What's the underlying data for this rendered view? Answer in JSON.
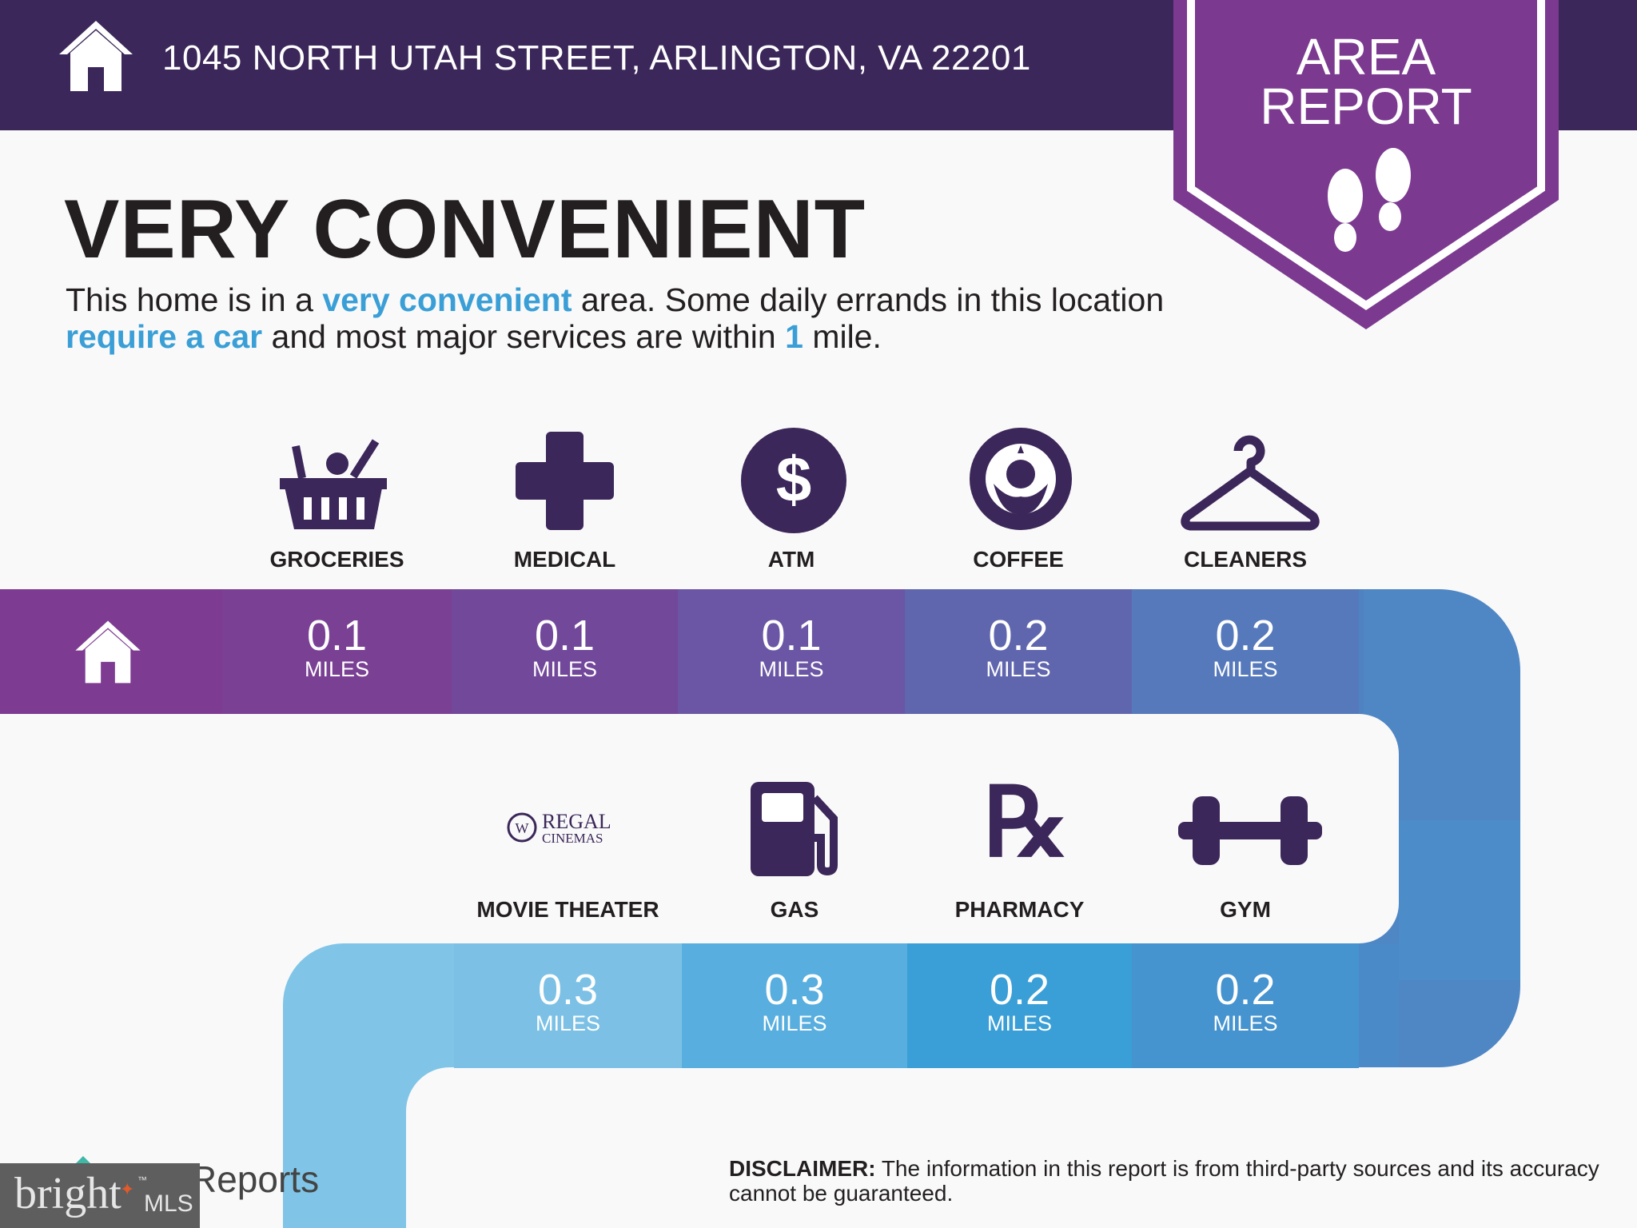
{
  "header": {
    "address": "1045 NORTH UTAH STREET, ARLINGTON, VA 22201",
    "icon": "house-icon"
  },
  "badge": {
    "line1": "AREA",
    "line2": "REPORT",
    "icon": "footprints-icon"
  },
  "title": "VERY CONVENIENT",
  "description": {
    "p1": "This home is in a ",
    "h1": "very convenient",
    "p2": " area. Some daily errands in this location ",
    "h2": "require a car",
    "p3": " and most major services are within ",
    "h3": "1",
    "p4": " mile."
  },
  "row1": [
    {
      "label": "GROCERIES",
      "value": "0.1",
      "unit": "MILES",
      "icon": "grocery-basket-icon",
      "color": "#7a4094"
    },
    {
      "label": "MEDICAL",
      "value": "0.1",
      "unit": "MILES",
      "icon": "medical-cross-icon",
      "color": "#72489b"
    },
    {
      "label": "ATM",
      "value": "0.1",
      "unit": "MILES",
      "icon": "dollar-icon",
      "color": "#6a56a4"
    },
    {
      "label": "COFFEE",
      "value": "0.2",
      "unit": "MILES",
      "icon": "starbucks-logo-icon",
      "color": "#6066ae"
    },
    {
      "label": "CLEANERS",
      "value": "0.2",
      "unit": "MILES",
      "icon": "hanger-icon",
      "color": "#5579bb"
    }
  ],
  "row2": [
    {
      "label": "MOVIE THEATER",
      "value": "0.3",
      "unit": "MILES",
      "icon": "regal-cinemas-logo",
      "logo_text": "REGAL CINEMAS",
      "color": "#7cc1e5"
    },
    {
      "label": "GAS",
      "value": "0.3",
      "unit": "MILES",
      "icon": "gas-pump-icon",
      "color": "#58aede"
    },
    {
      "label": "PHARMACY",
      "value": "0.2",
      "unit": "MILES",
      "icon": "rx-icon",
      "color": "#3a9fd6"
    },
    {
      "label": "GYM",
      "value": "0.2",
      "unit": "MILES",
      "icon": "dumbbell-icon",
      "color": "#4593cf"
    }
  ],
  "footer": {
    "reports_text": "Reports",
    "disclaimer_bold": "DISCLAIMER:",
    "disclaimer": " The information in this report is from third-party sources and its accuracy cannot be guaranteed."
  },
  "watermark": {
    "brand": "bright",
    "suffix": "MLS",
    "tm": "™"
  }
}
